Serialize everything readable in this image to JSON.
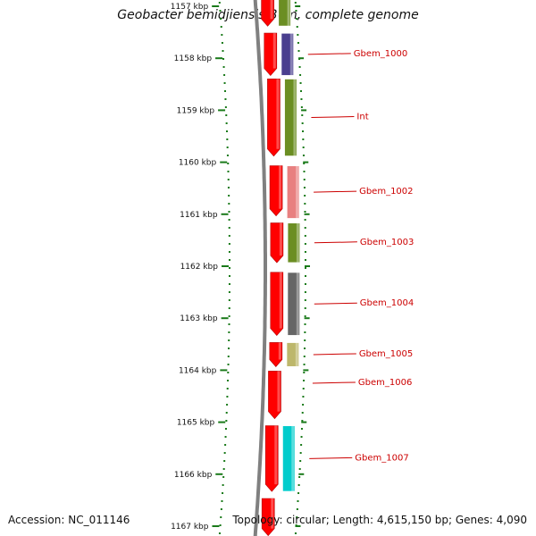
{
  "title": "Geobacter bemidjiensis Bem, complete genome",
  "accession": "Accession: NC_011146",
  "summary": "Topology: circular; Length: 4,615,150 bp; Genes: 4,090",
  "colors": {
    "backbone": "#808080",
    "tick": "#1a7a1a",
    "forward_strand": "#ff0000",
    "label": "#cc0000"
  },
  "ruler": {
    "unit": "kbp",
    "ticks": [
      {
        "kbp": 1157,
        "label": "1157 kbp"
      },
      {
        "kbp": 1158,
        "label": "1158 kbp"
      },
      {
        "kbp": 1159,
        "label": "1159 kbp"
      },
      {
        "kbp": 1160,
        "label": "1160 kbp"
      },
      {
        "kbp": 1161,
        "label": "1161 kbp"
      },
      {
        "kbp": 1162,
        "label": "1162 kbp"
      },
      {
        "kbp": 1163,
        "label": "1163 kbp"
      },
      {
        "kbp": 1164,
        "label": "1164 kbp"
      },
      {
        "kbp": 1165,
        "label": "1165 kbp"
      },
      {
        "kbp": 1166,
        "label": "1166 kbp"
      },
      {
        "kbp": 1167,
        "label": "1167 kbp"
      }
    ]
  },
  "forward_genes": [
    {
      "start": 1156.8,
      "end": 1157.4
    },
    {
      "start": 1157.5,
      "end": 1158.35
    },
    {
      "start": 1158.38,
      "end": 1159.9
    },
    {
      "start": 1160.05,
      "end": 1161.05
    },
    {
      "start": 1161.15,
      "end": 1161.95
    },
    {
      "start": 1162.1,
      "end": 1163.35
    },
    {
      "start": 1163.45,
      "end": 1163.95
    },
    {
      "start": 1164.0,
      "end": 1164.95
    },
    {
      "start": 1165.05,
      "end": 1166.35
    },
    {
      "start": 1166.45,
      "end": 1167.2
    }
  ],
  "feature_genes": [
    {
      "name": "Gbem_1000",
      "start": 1157.5,
      "end": 1158.35,
      "color": "#4a3f8f"
    },
    {
      "name": "Int",
      "start": 1158.38,
      "end": 1159.9,
      "color": "#6b8e23"
    },
    {
      "name": "Gbem_1002",
      "start": 1160.05,
      "end": 1161.1,
      "color": "#e88080"
    },
    {
      "name": "Gbem_1003",
      "start": 1161.15,
      "end": 1161.95,
      "color": "#6b8e23"
    },
    {
      "name": "Gbem_1004",
      "start": 1162.1,
      "end": 1163.35,
      "color": "#666666"
    },
    {
      "name": "Gbem_1005",
      "start": 1163.45,
      "end": 1163.95,
      "color": "#bdb76b"
    },
    {
      "name": "Gbem_1006",
      "start": 1164.25,
      "end": 1164.25,
      "color": ""
    },
    {
      "name": "Gbem_1007",
      "start": 1165.05,
      "end": 1166.35,
      "color": "#00cccc"
    }
  ],
  "top_feature": {
    "start": 1156.8,
    "end": 1157.4,
    "color": "#6b8e23"
  }
}
